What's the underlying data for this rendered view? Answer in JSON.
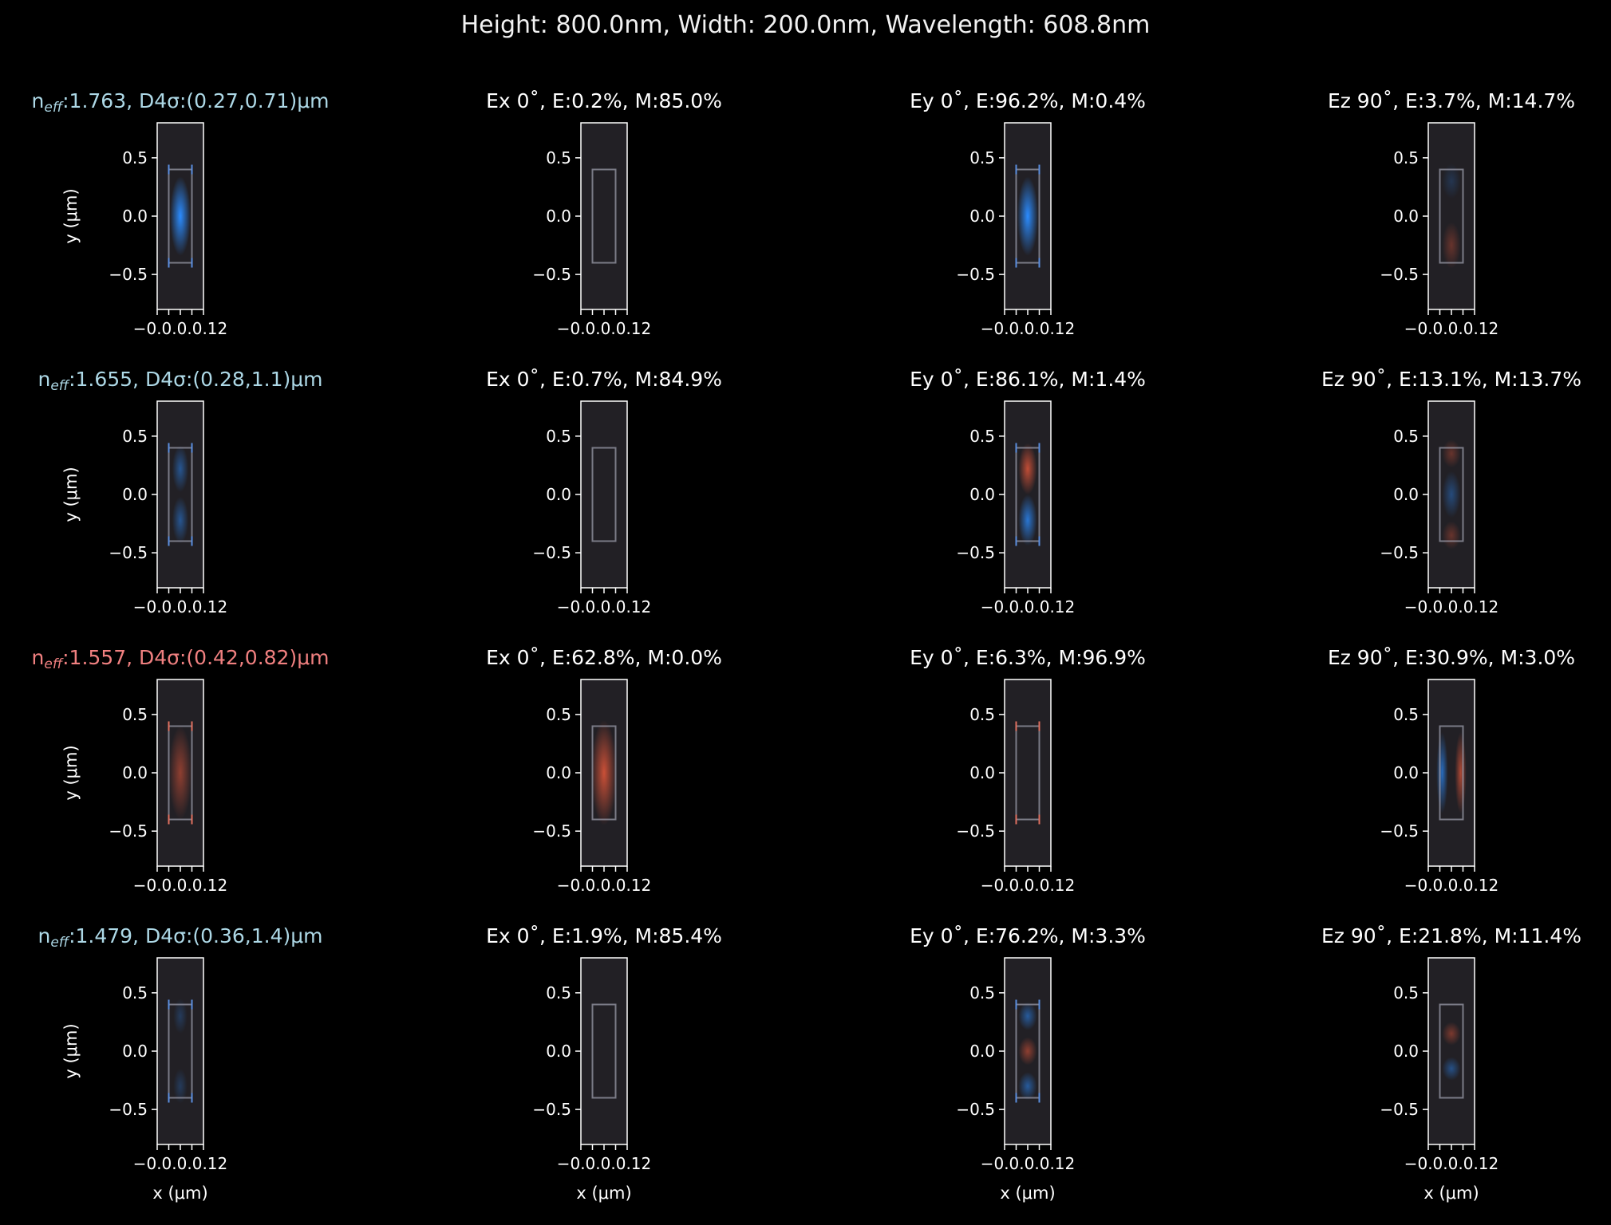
{
  "figure": {
    "suptitle": "Height: 800.0nm, Width: 200.0nm, Wavelength: 608.8nm",
    "xlabel": "x (μm)",
    "ylabel": "y (μm)",
    "yticks": [
      "0.5",
      "0.0",
      "−0.5"
    ],
    "xtick_label": "−0.0.0.0.12"
  },
  "chart_data": {
    "type": "heatmap",
    "height_nm": 800.0,
    "width_nm": 200.0,
    "wavelength_nm": 608.8,
    "xlim_um": [
      -0.2,
      0.2
    ],
    "ylim_um": [
      -0.8,
      0.8
    ],
    "core_x_um": [
      -0.1,
      0.1
    ],
    "core_y_um": [
      -0.4,
      0.4
    ],
    "colors": {
      "background": "#000000",
      "panel": "#222025",
      "blue_mode_title": "#add8e6",
      "red_mode_title": "#f08080",
      "positive_field": "#e8583a",
      "negative_field": "#2b8cff"
    },
    "modes": [
      {
        "title": "n$_{eff}$:1.763, D4σ:(0.27,0.71)μm",
        "title_color": "#add8e6",
        "neff": 1.763,
        "d4sigma_um": [
          0.27,
          0.71
        ],
        "edge_marker_sign": -1,
        "ex": {
          "title": "Ex 0˚, E:0.2%, M:85.0%",
          "E": 0.2,
          "M": 85.0
        },
        "ey": {
          "title": "Ey 0˚, E:96.2%, M:0.4%",
          "E": 96.2,
          "M": 0.4
        },
        "ez": {
          "title": "Ez 90˚, E:3.7%, M:14.7%",
          "E": 3.7,
          "M": 14.7
        }
      },
      {
        "title": "n$_{eff}$:1.655, D4σ:(0.28,1.1)μm",
        "title_color": "#add8e6",
        "neff": 1.655,
        "d4sigma_um": [
          0.28,
          1.1
        ],
        "edge_marker_sign": -1,
        "ex": {
          "title": "Ex 0˚, E:0.7%, M:84.9%",
          "E": 0.7,
          "M": 84.9
        },
        "ey": {
          "title": "Ey 0˚, E:86.1%, M:1.4%",
          "E": 86.1,
          "M": 1.4
        },
        "ez": {
          "title": "Ez 90˚, E:13.1%, M:13.7%",
          "E": 13.1,
          "M": 13.7
        }
      },
      {
        "title": "n$_{eff}$:1.557, D4σ:(0.42,0.82)μm",
        "title_color": "#f08080",
        "neff": 1.557,
        "d4sigma_um": [
          0.42,
          0.82
        ],
        "edge_marker_sign": 1,
        "ex": {
          "title": "Ex 0˚, E:62.8%, M:0.0%",
          "E": 62.8,
          "M": 0.0
        },
        "ey": {
          "title": "Ey 0˚, E:6.3%, M:96.9%",
          "E": 6.3,
          "M": 96.9
        },
        "ez": {
          "title": "Ez 90˚, E:30.9%, M:3.0%",
          "E": 30.9,
          "M": 3.0
        }
      },
      {
        "title": "n$_{eff}$:1.479, D4σ:(0.36,1.4)μm",
        "title_color": "#add8e6",
        "neff": 1.479,
        "d4sigma_um": [
          0.36,
          1.4
        ],
        "edge_marker_sign": -1,
        "ex": {
          "title": "Ex 0˚, E:1.9%, M:85.4%",
          "E": 1.9,
          "M": 85.4
        },
        "ey": {
          "title": "Ey 0˚, E:76.2%, M:3.3%",
          "E": 76.2,
          "M": 3.3
        },
        "ez": {
          "title": "Ez 90˚, E:21.8%, M:11.4%",
          "E": 21.8,
          "M": 11.4
        }
      }
    ]
  }
}
